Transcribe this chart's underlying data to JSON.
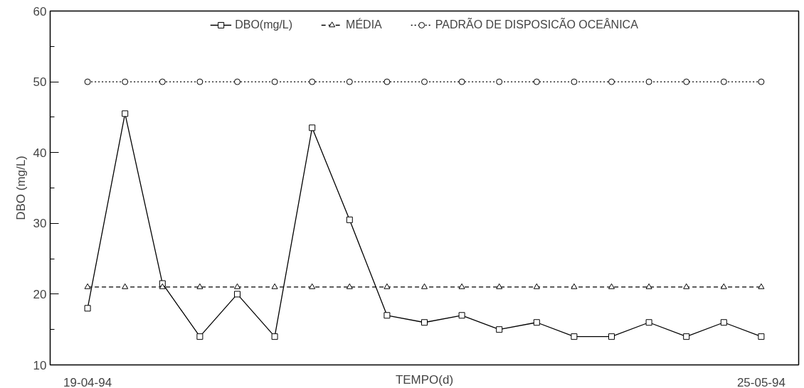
{
  "chart_data": {
    "type": "line",
    "xlabel": "TEMPO(d)",
    "ylabel": "DBO (mg/L)",
    "x": [
      "1994-04-19",
      "1994-04-21",
      "1994-04-23",
      "1994-04-25",
      "1994-04-27",
      "1994-04-29",
      "1994-05-01",
      "1994-05-03",
      "1994-05-05",
      "1994-05-07",
      "1994-05-09",
      "1994-05-11",
      "1994-05-13",
      "1994-05-15",
      "1994-05-17",
      "1994-05-19",
      "1994-05-21",
      "1994-05-23",
      "1994-05-25"
    ],
    "series": [
      {
        "name": "DBO(mg/L)",
        "color": "#000000",
        "marker": "square",
        "line_style": "solid",
        "values": [
          18,
          45.5,
          21.5,
          14,
          20,
          14,
          43.5,
          30.5,
          17,
          16,
          17,
          15,
          16,
          14,
          14,
          16,
          14,
          16,
          14
        ]
      },
      {
        "name": "MÉDIA",
        "color": "#000000",
        "marker": "triangle",
        "line_style": "dashed",
        "values": [
          21,
          21,
          21,
          21,
          21,
          21,
          21,
          21,
          21,
          21,
          21,
          21,
          21,
          21,
          21,
          21,
          21,
          21,
          21
        ]
      },
      {
        "name": "PADRÃO DE DISPOSICÃO OCEÂNICA",
        "color": "#000000",
        "marker": "circle",
        "line_style": "dotted",
        "values": [
          50,
          50,
          50,
          50,
          50,
          50,
          50,
          50,
          50,
          50,
          50,
          50,
          50,
          50,
          50,
          50,
          50,
          50,
          50
        ]
      }
    ],
    "xlim": [
      "1994-04-17",
      "1994-05-27"
    ],
    "xticks": [
      {
        "value": "1994-04-19",
        "label": "19-04-94"
      },
      {
        "value": "1994-05-25",
        "label": "25-05-94"
      }
    ],
    "ylim": [
      10,
      60
    ],
    "yticks": [
      10,
      20,
      30,
      40,
      50,
      60
    ],
    "grid": false,
    "legend": "top"
  }
}
